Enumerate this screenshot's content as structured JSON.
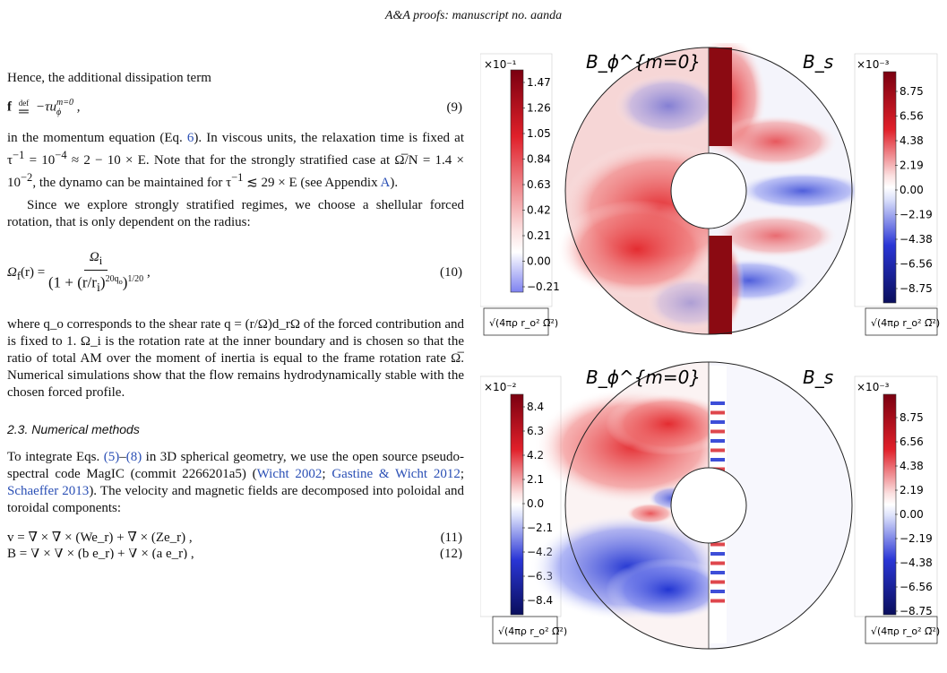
{
  "header": {
    "running_title": "A&A proofs: manuscript no. aanda"
  },
  "text": {
    "p1": "Hence, the additional dissipation term",
    "eq9_lhs": "f",
    "eq9_def": "def",
    "eq9_rhs": "−τu",
    "eq9_sup": "m=0",
    "eq9_sub": "ϕ",
    "eq9_tail": " ,",
    "eq9_num": "(9)",
    "p2a": "in the momentum equation (Eq. ",
    "p2_eqref": "6",
    "p2b": "). In viscous units, the relaxation time is fixed at τ",
    "p2c": "−1",
    "p2d": " = 10",
    "p2e": "−4",
    "p2f": " ≈ 2 − 10 × E. Note that for the strongly stratified case at Ω̅/N = 1.4 × 10",
    "p2g": "−2",
    "p2h": ", the dynamo can be maintained for τ",
    "p2i": "−1",
    "p2j": " ≲ 29 × E (see Appendix ",
    "p2_appref": "A",
    "p2k": ").",
    "p3": "Since we explore strongly stratified regimes, we choose a shellular forced rotation, that is only dependent on the radius:",
    "eq10_lhs": "Ω",
    "eq10_lhs_sub": "f",
    "eq10_lhs_tail": "(r) =",
    "eq10_num_top": "Ω",
    "eq10_num_sub": "i",
    "eq10_den": "(1 + (r/r",
    "eq10_den_sub": "i",
    "eq10_den_exp": "20q",
    "eq10_den_exp_sub": "o",
    "eq10_den_outer": "1/20",
    "eq10_tail": " ,",
    "eq10_num": "(10)",
    "p4": "where q_o corresponds to the shear rate q = (r/Ω)d_rΩ of the forced contribution and is fixed to 1. Ω_i is the rotation rate at the inner boundary and is chosen so that the ratio of total AM over the moment of inertia is equal to the frame rotation rate Ω̅. Numerical simulations show that the flow remains hydrodynamically stable with the chosen forced profile.",
    "section": "2.3. Numerical methods",
    "p5a": "To integrate Eqs. ",
    "p5_ref1": "(5)",
    "p5_dash": "–",
    "p5_ref2": "(8)",
    "p5b": " in 3D spherical geometry, we use the open source pseudo-spectral code MagIC (commit 2266201a5) (",
    "p5_cite1": "Wicht 2002",
    "p5_sep1": "; ",
    "p5_cite2": "Gastine & Wicht 2012",
    "p5_sep2": "; ",
    "p5_cite3": "Schaeffer 2013",
    "p5c": "). The velocity and magnetic fields are decomposed into poloidal and toroidal components:",
    "eq11": "v = ∇ × ∇ × (We_r) + ∇ × (Ze_r) ,",
    "eq11_num": "(11)",
    "eq12": "B = ∇ × ∇ × (b e_r) + ∇ × (a e_r) ,",
    "eq12_num": "(12)"
  },
  "figure": {
    "panels": [
      {
        "left_title": "B_ϕ^{m=0}",
        "right_title": "B_s",
        "left_multiplier": "×10⁻¹",
        "right_multiplier": "×10⁻³",
        "left_ticks": [
          "1.47",
          "1.26",
          "1.05",
          "0.84",
          "0.63",
          "0.42",
          "0.21",
          "0.00",
          "−0.21"
        ],
        "right_ticks": [
          "8.75",
          "6.56",
          "4.38",
          "2.19",
          "0.00",
          "−2.19",
          "−4.38",
          "−6.56",
          "−8.75"
        ],
        "unit_label": "√(4πρ r_o² Ω̅²)"
      },
      {
        "left_title": "B_ϕ^{m=0}",
        "right_title": "B_s",
        "left_multiplier": "×10⁻²",
        "right_multiplier": "×10⁻³",
        "left_ticks": [
          "8.4",
          "6.3",
          "4.2",
          "2.1",
          "0.0",
          "−2.1",
          "−4.2",
          "−6.3",
          "−8.4"
        ],
        "right_ticks": [
          "8.75",
          "6.56",
          "4.38",
          "2.19",
          "0.00",
          "−2.19",
          "−4.38",
          "−6.56",
          "−8.75"
        ],
        "unit_label": "√(4πρ r_o² Ω̅²)"
      }
    ],
    "colors": {
      "red": "#8b0a12",
      "white": "#ffffff",
      "blue": "#0a0e5c"
    }
  }
}
